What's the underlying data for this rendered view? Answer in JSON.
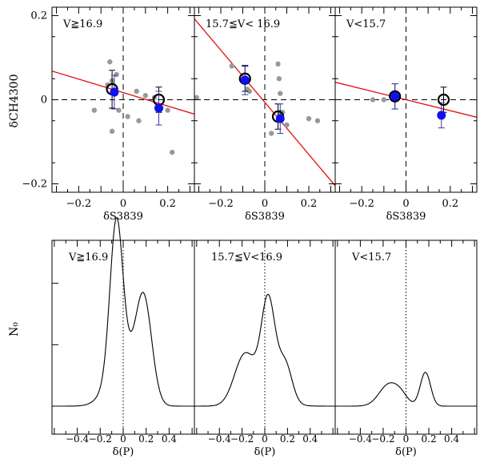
{
  "colors": {
    "fit_line": "#e01010",
    "blue_points": "#1111ee",
    "error_bars": "#3a3aaa",
    "gray_points": "#999999",
    "axes": "#000000"
  },
  "chart_data": [
    {
      "type": "scatter",
      "row": "top",
      "shared_ylabel": "δCH4300",
      "xlabel": "δS3839",
      "xlim": [
        -0.32,
        0.32
      ],
      "ylim": [
        -0.22,
        0.22
      ],
      "xticks": [
        -0.2,
        0,
        0.2
      ],
      "xtick_labels": [
        "−0.2",
        "0",
        "0.2"
      ],
      "yticks": [
        -0.2,
        0,
        0.2
      ],
      "ytick_labels": [
        "−0.2",
        "0",
        "0.2"
      ],
      "panels": [
        {
          "title": "V≧16.9",
          "gray_points": [
            [
              -0.13,
              -0.025
            ],
            [
              -0.07,
              0.035
            ],
            [
              -0.06,
              0.09
            ],
            [
              -0.05,
              0.045
            ],
            [
              -0.05,
              -0.075
            ],
            [
              -0.03,
              0.06
            ],
            [
              -0.02,
              -0.025
            ],
            [
              0.02,
              -0.04
            ],
            [
              0.06,
              0.02
            ],
            [
              0.07,
              -0.05
            ],
            [
              0.1,
              0.01
            ],
            [
              0.14,
              0.005
            ],
            [
              0.17,
              -0.02
            ],
            [
              0.2,
              -0.025
            ],
            [
              0.22,
              -0.125
            ]
          ],
          "open_circles": [
            {
              "x": -0.05,
              "y": 0.025,
              "err": 0.045
            },
            {
              "x": 0.16,
              "y": 0.0,
              "err": 0.03
            }
          ],
          "blue_points": [
            {
              "x": -0.04,
              "y": 0.018,
              "err": 0.04
            },
            {
              "x": 0.16,
              "y": -0.02,
              "err": 0.04
            }
          ],
          "fit_line": {
            "slope": -0.16,
            "intercept": 0.017
          }
        },
        {
          "title": "15.7≦V< 16.9",
          "gray_points": [
            [
              -0.31,
              0.005
            ],
            [
              -0.15,
              0.08
            ],
            [
              -0.08,
              0.025
            ],
            [
              -0.07,
              0.02
            ],
            [
              0.03,
              -0.08
            ],
            [
              0.06,
              0.085
            ],
            [
              0.065,
              0.05
            ],
            [
              0.07,
              -0.03
            ],
            [
              0.07,
              0.015
            ],
            [
              0.08,
              -0.03
            ],
            [
              0.1,
              -0.06
            ],
            [
              0.2,
              -0.045
            ],
            [
              0.24,
              -0.05
            ]
          ],
          "open_circles": [
            {
              "x": -0.09,
              "y": 0.05,
              "err": 0.03
            },
            {
              "x": 0.06,
              "y": -0.04,
              "err": 0.03
            }
          ],
          "blue_points": [
            {
              "x": -0.09,
              "y": 0.047,
              "err": 0.035
            },
            {
              "x": 0.07,
              "y": -0.045,
              "err": 0.035
            }
          ],
          "fit_line": {
            "slope": -0.62,
            "intercept": -0.006
          }
        },
        {
          "title": "V<15.7",
          "gray_points": [
            [
              -0.15,
              0.0
            ],
            [
              -0.1,
              0.0
            ]
          ],
          "open_circles": [
            {
              "x": -0.05,
              "y": 0.008,
              "err": 0.03
            },
            {
              "x": 0.17,
              "y": 0.0,
              "err": 0.03
            }
          ],
          "blue_points": [
            {
              "x": -0.05,
              "y": 0.008,
              "err": 0.03
            },
            {
              "x": 0.16,
              "y": -0.037,
              "err": 0.03
            }
          ],
          "fit_line": {
            "slope": -0.13,
            "intercept": 0.0
          }
        }
      ]
    },
    {
      "type": "line",
      "row": "bottom",
      "shared_ylabel": "N₀",
      "xlabel": "δ(P)",
      "xlim": [
        -0.62,
        0.62
      ],
      "ylim": [
        0,
        1.08
      ],
      "xticks": [
        -0.4,
        -0.2,
        0,
        0.2,
        0.4
      ],
      "xtick_labels": [
        "−0.4",
        "−0.2",
        "0",
        "0.2",
        "0.4"
      ],
      "panels": [
        {
          "title": "V≧16.9",
          "components": [
            {
              "amplitude": 0.95,
              "mean": -0.06,
              "sigma": 0.055
            },
            {
              "amplitude": 0.3,
              "mean": -0.01,
              "sigma": 0.12
            },
            {
              "amplitude": 0.65,
              "mean": 0.18,
              "sigma": 0.07
            }
          ]
        },
        {
          "title": "15.7≦V<16.9",
          "components": [
            {
              "amplitude": 0.6,
              "mean": 0.03,
              "sigma": 0.06
            },
            {
              "amplitude": 0.3,
              "mean": -0.18,
              "sigma": 0.09
            },
            {
              "amplitude": 0.24,
              "mean": 0.18,
              "sigma": 0.06
            },
            {
              "amplitude": 0.1,
              "mean": 0.0,
              "sigma": 0.14
            }
          ]
        },
        {
          "title": "V<15.7",
          "components": [
            {
              "amplitude": 0.14,
              "mean": -0.15,
              "sigma": 0.085
            },
            {
              "amplitude": 0.05,
              "mean": -0.04,
              "sigma": 0.06
            },
            {
              "amplitude": 0.22,
              "mean": 0.17,
              "sigma": 0.045
            }
          ]
        }
      ]
    }
  ]
}
